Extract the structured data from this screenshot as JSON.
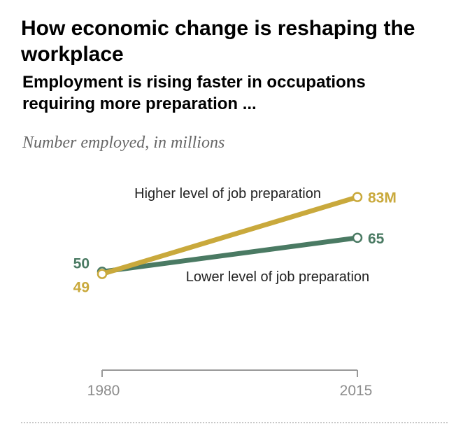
{
  "header": {
    "title": "How economic change is reshaping the workplace",
    "subtitle": "Employment is rising faster in occupations requiring more preparation ...",
    "unit_note": "Number employed, in millions"
  },
  "chart_data": {
    "type": "line",
    "title": "How economic change is reshaping the workplace",
    "subtitle": "Employment is rising faster in occupations requiring more preparation ...",
    "ylabel": "Number employed, in millions",
    "xlabel": "",
    "x": [
      1980,
      2015
    ],
    "x_tick_labels": [
      "1980",
      "2015"
    ],
    "ylim": [
      30,
      90
    ],
    "grid": false,
    "legend": "inline labels",
    "series": [
      {
        "name": "Higher level of job preparation",
        "values": [
          49,
          83
        ],
        "value_labels": [
          "49",
          "83M"
        ],
        "color": "#c9a93c"
      },
      {
        "name": "Lower level of job preparation",
        "values": [
          50,
          65
        ],
        "value_labels": [
          "50",
          "65"
        ],
        "color": "#4a7a63"
      }
    ]
  },
  "colors": {
    "axis": "#999999",
    "tick_text": "#8c8c8c",
    "series_label_text": "#222222"
  }
}
